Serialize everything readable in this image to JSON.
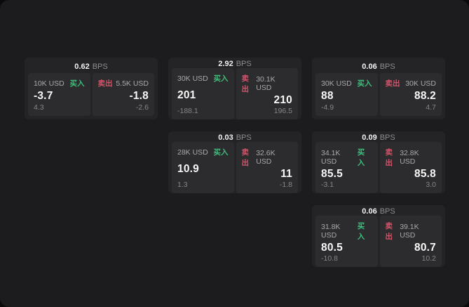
{
  "colors": {
    "window_bg": "#1c1c1e",
    "card_bg": "#242426",
    "panel_bg": "#2c2c2e",
    "buy_green": "#3fbe7d",
    "sell_red": "#d5536a"
  },
  "cards": [
    {
      "spread": "0.62",
      "spread_unit": "BPS",
      "buy": {
        "notional": "10K USD",
        "side_label": "买入",
        "price": "-3.7",
        "change": "4.3"
      },
      "sell": {
        "side_label": "卖出",
        "notional": "5.5K USD",
        "price": "-1.8",
        "change": "-2.6"
      }
    },
    {
      "spread": "2.92",
      "spread_unit": "BPS",
      "buy": {
        "notional": "30K USD",
        "side_label": "买入",
        "price": "201",
        "change": "-188.1"
      },
      "sell": {
        "side_label": "卖出",
        "notional": "30.1K USD",
        "price": "210",
        "change": "196.5"
      }
    },
    {
      "spread": "0.06",
      "spread_unit": "BPS",
      "buy": {
        "notional": "30K USD",
        "side_label": "买入",
        "price": "88",
        "change": "-4.9"
      },
      "sell": {
        "side_label": "卖出",
        "notional": "30K USD",
        "price": "88.2",
        "change": "4.7"
      }
    },
    {
      "spread": "0.03",
      "spread_unit": "BPS",
      "buy": {
        "notional": "28K USD",
        "side_label": "买入",
        "price": "10.9",
        "change": "1.3"
      },
      "sell": {
        "side_label": "卖出",
        "notional": "32.6K USD",
        "price": "11",
        "change": "-1.8"
      }
    },
    {
      "spread": "0.09",
      "spread_unit": "BPS",
      "buy": {
        "notional": "34.1K USD",
        "side_label": "买入",
        "price": "85.5",
        "change": "-3.1"
      },
      "sell": {
        "side_label": "卖出",
        "notional": "32.8K USD",
        "price": "85.8",
        "change": "3.0"
      }
    },
    {
      "spread": "0.06",
      "spread_unit": "BPS",
      "buy": {
        "notional": "31.8K USD",
        "side_label": "买入",
        "price": "80.5",
        "change": "-10.8"
      },
      "sell": {
        "side_label": "卖出",
        "notional": "39.1K USD",
        "price": "80.7",
        "change": "10.2"
      }
    }
  ]
}
